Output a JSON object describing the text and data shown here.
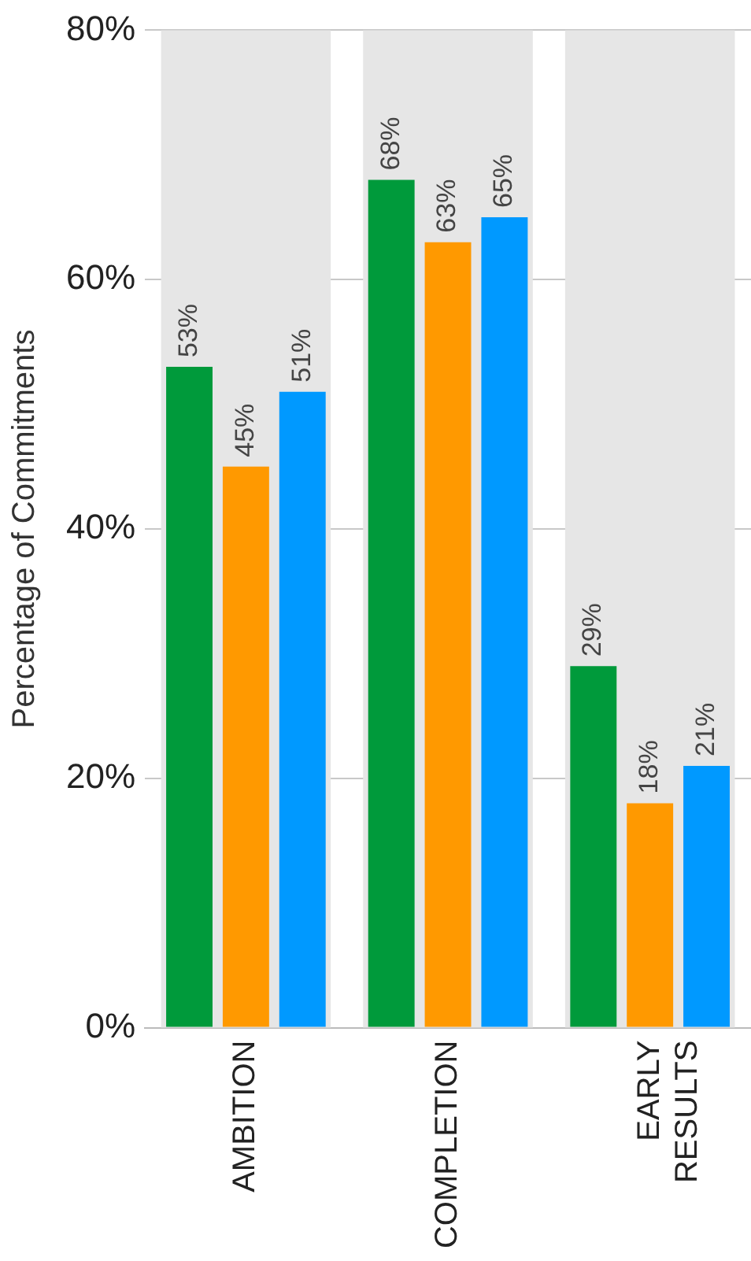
{
  "chart_data": {
    "type": "bar",
    "ylabel": "Percentage of Commitments",
    "categories": [
      "AMBITION",
      "COMPLETION",
      "EARLY RESULTS"
    ],
    "series": [
      {
        "color": "#009a3b",
        "values": [
          53,
          68,
          29
        ],
        "value_labels": [
          "53%",
          "68%",
          "29%"
        ]
      },
      {
        "color": "#ff9900",
        "values": [
          45,
          63,
          18
        ],
        "value_labels": [
          "45%",
          "63%",
          "18%"
        ]
      },
      {
        "color": "#0099ff",
        "values": [
          51,
          65,
          21
        ],
        "value_labels": [
          "51%",
          "65%",
          "21%"
        ]
      }
    ],
    "ylim": [
      0,
      80
    ],
    "yticks": [
      {
        "value": 0,
        "label": "0%"
      },
      {
        "value": 20,
        "label": "20%"
      },
      {
        "value": 40,
        "label": "40%"
      },
      {
        "value": 60,
        "label": "60%"
      },
      {
        "value": 80,
        "label": "80%"
      }
    ],
    "grid": "y",
    "legend": false,
    "bands": [
      {
        "axis": "x",
        "from": "AMBITION",
        "to": "AMBITION",
        "color": "#e6e6e6"
      },
      {
        "axis": "x",
        "from": "COMPLETION",
        "to": "COMPLETION",
        "color": "#e6e6e6"
      },
      {
        "axis": "x",
        "from": "EARLY RESULTS",
        "to": "EARLY RESULTS",
        "color": "#e6e6e6"
      }
    ]
  }
}
